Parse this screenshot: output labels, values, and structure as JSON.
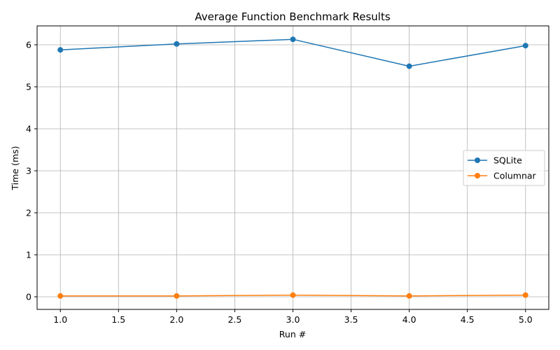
{
  "chart_data": {
    "type": "line",
    "title": "Average Function Benchmark Results",
    "xlabel": "Run #",
    "ylabel": "Time (ms)",
    "x": [
      1,
      2,
      3,
      4,
      5
    ],
    "xlim": [
      0.8,
      5.2
    ],
    "ylim": [
      -0.3,
      6.45
    ],
    "xticks": [
      "1.0",
      "1.5",
      "2.0",
      "2.5",
      "3.0",
      "3.5",
      "4.0",
      "4.5",
      "5.0"
    ],
    "yticks": [
      "0",
      "1",
      "2",
      "3",
      "4",
      "5",
      "6"
    ],
    "grid": true,
    "legend_position": "center-right",
    "series": [
      {
        "name": "SQLite",
        "color": "#1f77b4",
        "values": [
          5.88,
          6.02,
          6.13,
          5.49,
          5.98
        ]
      },
      {
        "name": "Columnar",
        "color": "#ff7f0e",
        "values": [
          0.02,
          0.02,
          0.04,
          0.02,
          0.04
        ]
      }
    ]
  }
}
